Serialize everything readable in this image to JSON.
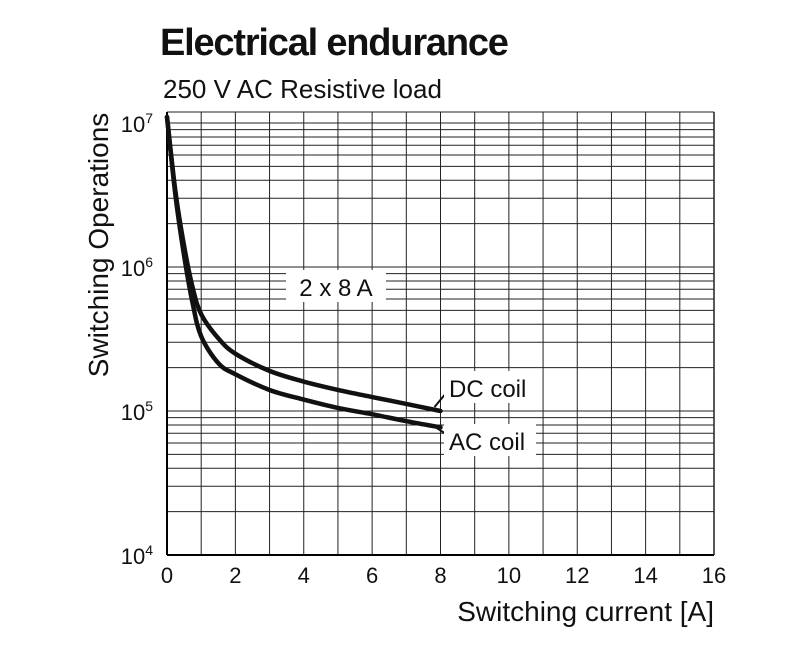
{
  "chart_data": {
    "type": "line",
    "title": "Electrical endurance",
    "subtitle": "250 V AC Resistive load",
    "xlabel": "Switching current [A]",
    "ylabel": "Switching Operations",
    "xlim": [
      0,
      16
    ],
    "ylim": [
      10000,
      10000000
    ],
    "yscale": "log",
    "grid": true,
    "x_ticks": [
      0,
      2,
      4,
      6,
      8,
      10,
      12,
      14,
      16
    ],
    "y_ticks": [
      {
        "base": "10",
        "exp": "4",
        "value": 10000
      },
      {
        "base": "10",
        "exp": "5",
        "value": 100000
      },
      {
        "base": "10",
        "exp": "6",
        "value": 1000000
      },
      {
        "base": "10",
        "exp": "7",
        "value": 10000000
      }
    ],
    "annotations": [
      {
        "text": "2 x 8 A"
      }
    ],
    "series": [
      {
        "name": "DC coil",
        "x": [
          0,
          0.25,
          0.5,
          0.75,
          1.0,
          1.5,
          2.0,
          3.0,
          4.0,
          5.0,
          6.0,
          7.0,
          8.0
        ],
        "y": [
          11000000,
          3300000,
          1400000,
          720000,
          470000,
          320000,
          250000,
          190000,
          160000,
          140000,
          125000,
          112000,
          100000
        ]
      },
      {
        "name": "AC coil",
        "x": [
          0,
          0.25,
          0.5,
          0.75,
          1.0,
          1.5,
          2.0,
          3.0,
          4.0,
          5.0,
          6.0,
          7.0,
          8.0
        ],
        "y": [
          11000000,
          3100000,
          1200000,
          560000,
          330000,
          215000,
          180000,
          140000,
          120000,
          105000,
          95000,
          85000,
          77000
        ]
      }
    ]
  }
}
